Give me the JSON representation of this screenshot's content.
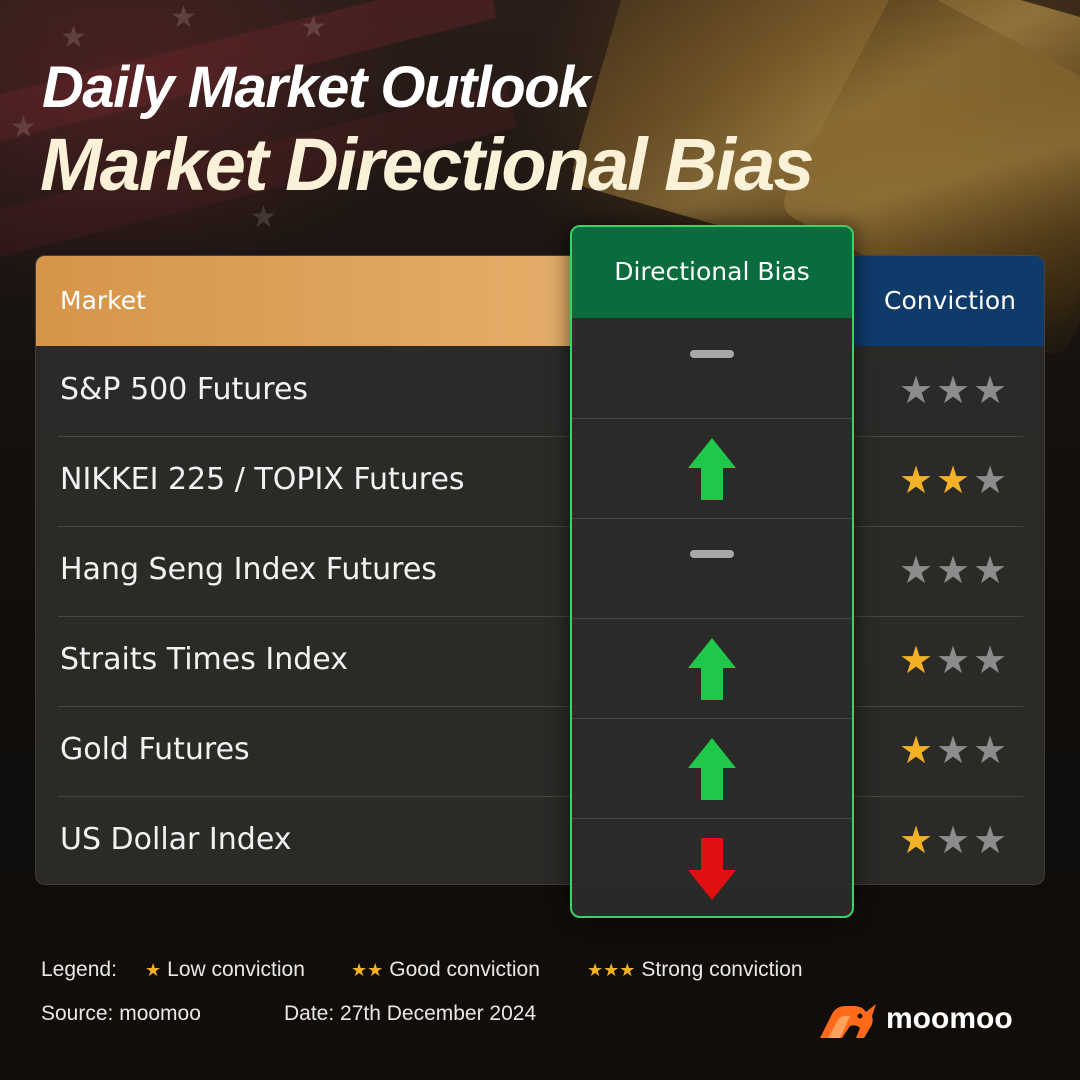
{
  "header": {
    "title_line1": "Daily Market Outlook",
    "title_line2": "Market Directional Bias"
  },
  "table": {
    "columns": {
      "market": "Market",
      "directional_bias": "Directional Bias",
      "conviction": "Conviction"
    },
    "rows": [
      {
        "market": "S&P 500 Futures",
        "bias": "neutral",
        "conviction_stars": 0
      },
      {
        "market": "NIKKEI 225 / TOPIX Futures",
        "bias": "up",
        "conviction_stars": 2
      },
      {
        "market": "Hang Seng Index Futures",
        "bias": "neutral",
        "conviction_stars": 0
      },
      {
        "market": "Straits Times Index",
        "bias": "up",
        "conviction_stars": 1
      },
      {
        "market": "Gold Futures",
        "bias": "up",
        "conviction_stars": 1
      },
      {
        "market": "US Dollar Index",
        "bias": "down",
        "conviction_stars": 1
      }
    ],
    "max_stars": 3
  },
  "legend": {
    "label": "Legend:",
    "items": [
      {
        "stars": "★",
        "text": "Low conviction"
      },
      {
        "stars": "★★",
        "text": "Good conviction"
      },
      {
        "stars": "★★★",
        "text": "Strong conviction"
      }
    ]
  },
  "footer": {
    "source": "Source: moomoo",
    "date": "Date: 27th December 2024",
    "brand": "moomoo"
  },
  "icons": {
    "neutral": "dash-icon",
    "up": "arrow-up-icon",
    "down": "arrow-down-icon",
    "star": "star-icon",
    "brand_logo": "moomoo-bull-logo"
  },
  "colors": {
    "market_header": "#e0a560",
    "bias_header": "#0a6b3c",
    "bias_border": "#3ad36a",
    "conviction_header": "#0f3b6b",
    "arrow_up": "#1ec94a",
    "arrow_down": "#e01010",
    "neutral_dash": "#a8a8a8",
    "star_on": "#f2b126",
    "star_off": "#8c8c8c",
    "brand_orange": "#ff6a1a"
  }
}
